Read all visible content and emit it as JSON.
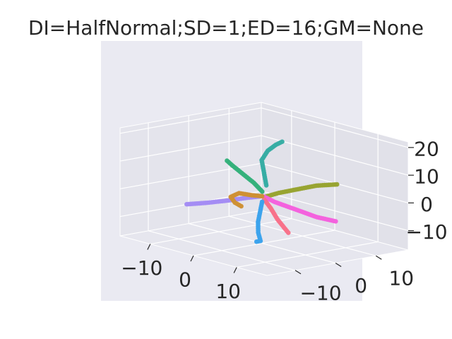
{
  "chart_data": {
    "type": "scatter3d",
    "title": "DI=HalfNormal;SD=1;ED=16;GM=None",
    "grid": true,
    "x": {
      "label": "",
      "ticks": [
        -10,
        0,
        10
      ],
      "tick_labels": [
        "−10",
        "0",
        "10"
      ],
      "lim": [
        -17,
        17
      ]
    },
    "y": {
      "label": "",
      "ticks": [
        -10,
        0,
        10
      ],
      "tick_labels": [
        "−10",
        "0",
        "10"
      ],
      "lim": [
        -17,
        18
      ]
    },
    "z": {
      "label": "",
      "ticks": [
        -10,
        0,
        10,
        20
      ],
      "tick_labels": [
        "−10",
        "0",
        "10",
        "20"
      ],
      "lim": [
        -17,
        22
      ]
    },
    "series": [
      {
        "color": "#36ada4",
        "points": [
          [
            0.5,
            0.5,
            4
          ],
          [
            -0.5,
            1,
            8
          ],
          [
            -1.5,
            1.5,
            12
          ],
          [
            -1.5,
            3,
            15
          ],
          [
            -1,
            4.5,
            17
          ],
          [
            -0.5,
            5.5,
            18
          ]
        ]
      },
      {
        "color": "#33b07a",
        "points": [
          [
            0.5,
            -0.5,
            2
          ],
          [
            -0.5,
            -1.5,
            5
          ],
          [
            -1.5,
            -3,
            8
          ],
          [
            -2.5,
            -4.5,
            11
          ],
          [
            -3,
            -5.5,
            13
          ]
        ]
      },
      {
        "color": "#97a431",
        "points": [
          [
            0.5,
            0.5,
            0
          ],
          [
            2,
            2,
            1.5
          ],
          [
            4,
            4,
            3
          ],
          [
            6,
            7,
            4.5
          ],
          [
            8,
            10,
            5
          ]
        ]
      },
      {
        "color": "#f461dd",
        "points": [
          [
            0.5,
            0,
            0
          ],
          [
            2,
            1,
            -1.5
          ],
          [
            5,
            3,
            -3.5
          ],
          [
            8,
            5,
            -5.5
          ],
          [
            10.5,
            7,
            -6.5
          ]
        ]
      },
      {
        "color": "#f77189",
        "points": [
          [
            0.5,
            0,
            -1
          ],
          [
            2,
            0,
            -3.5
          ],
          [
            4,
            -0.5,
            -6.5
          ],
          [
            6,
            -1,
            -8.5
          ],
          [
            7,
            -1,
            -10
          ]
        ]
      },
      {
        "color": "#3ba3ec",
        "points": [
          [
            0,
            0,
            -2
          ],
          [
            0,
            -0.5,
            -5.5
          ],
          [
            0,
            -1,
            -9
          ],
          [
            0.5,
            -1.5,
            -12.5
          ],
          [
            1.5,
            -2,
            -15
          ],
          [
            1.5,
            -3,
            -15
          ]
        ]
      },
      {
        "color": "#a48cf4",
        "points": [
          [
            0,
            0,
            0
          ],
          [
            -2,
            -1.5,
            -1
          ],
          [
            -4.5,
            -3.5,
            -2.5
          ],
          [
            -7.5,
            -6,
            -4
          ],
          [
            -10,
            -8,
            -5
          ]
        ]
      },
      {
        "color": "#ce9032",
        "points": [
          [
            0,
            0,
            0
          ],
          [
            -1.5,
            -1,
            0
          ],
          [
            -3,
            -2.5,
            0.5
          ],
          [
            -4,
            -3.5,
            -1
          ],
          [
            -3.5,
            -3,
            -3
          ],
          [
            -2.5,
            -2.5,
            -4
          ]
        ]
      }
    ]
  }
}
